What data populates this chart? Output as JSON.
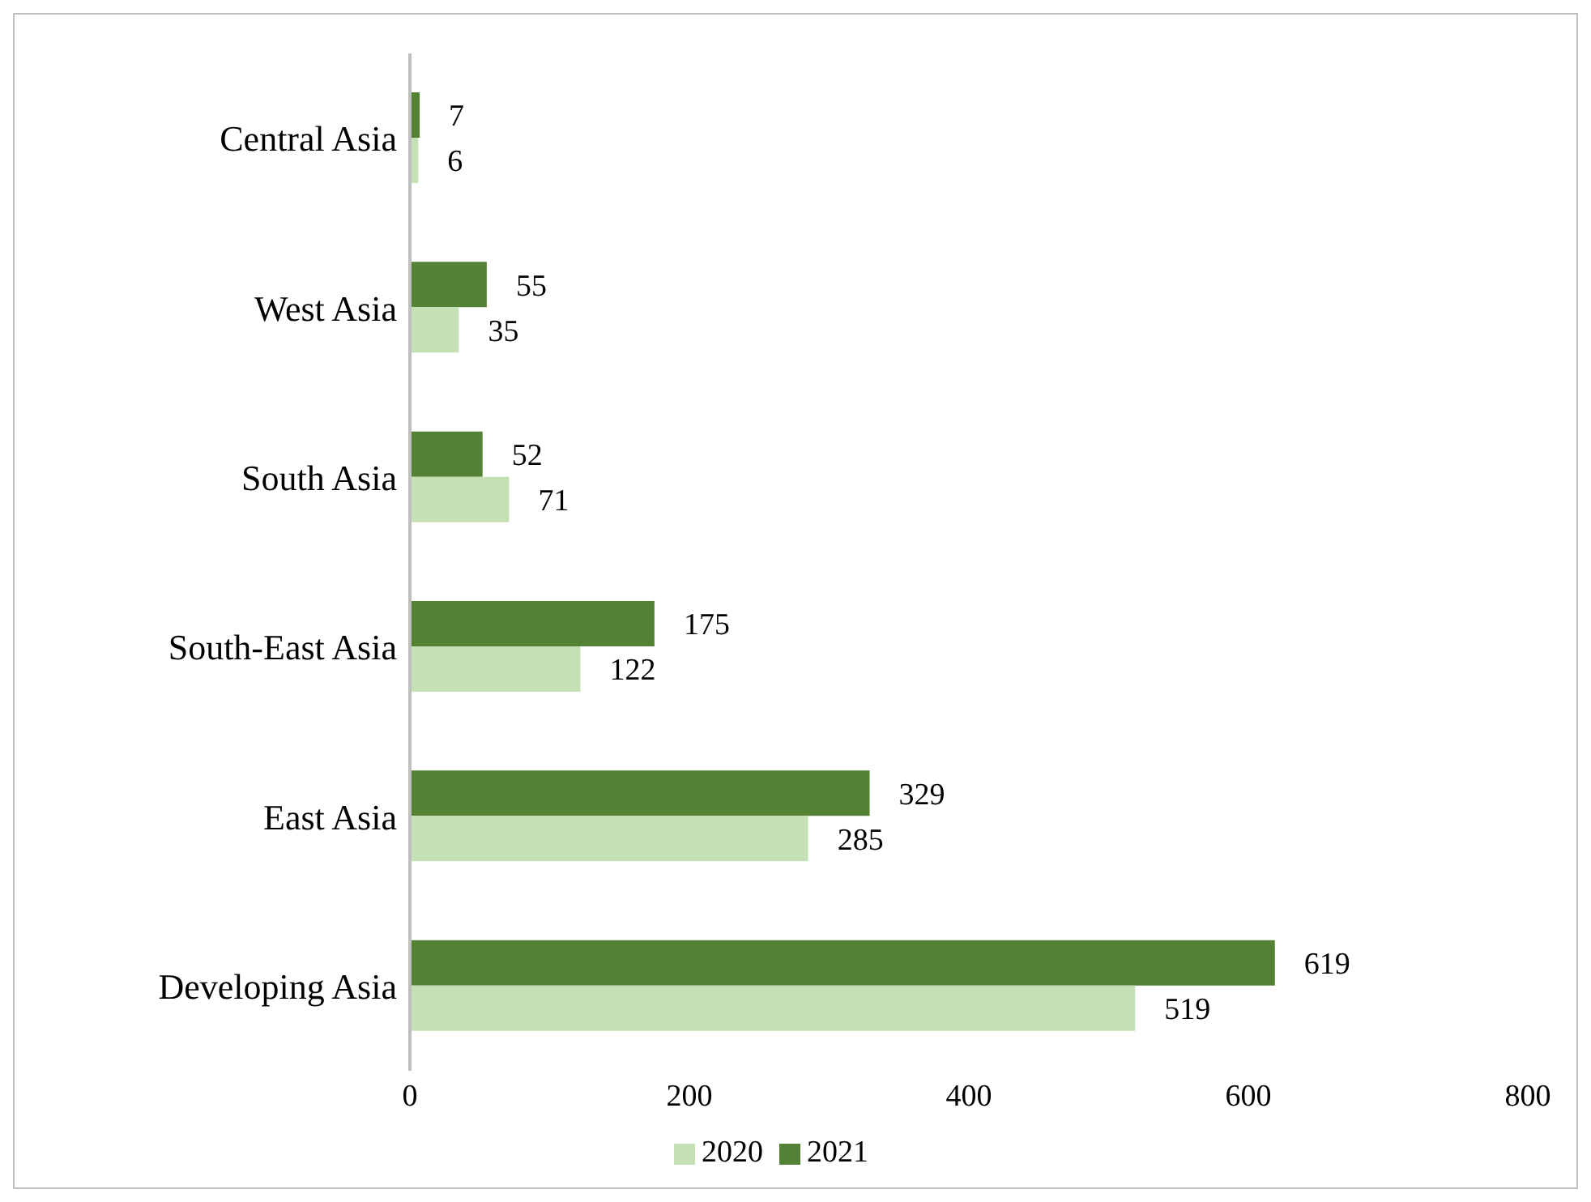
{
  "chart_data": {
    "type": "bar",
    "orientation": "horizontal",
    "categories": [
      "Central Asia",
      "West Asia",
      "South Asia",
      "South-East Asia",
      "East Asia",
      "Developing Asia"
    ],
    "series": [
      {
        "name": "2021",
        "color": "#548235",
        "values": [
          7,
          55,
          52,
          175,
          329,
          619
        ]
      },
      {
        "name": "2020",
        "color": "#c5e0b4",
        "values": [
          6,
          35,
          71,
          122,
          285,
          519
        ]
      }
    ],
    "xlim": [
      0,
      800
    ],
    "xticks": [
      0,
      200,
      400,
      600,
      800
    ],
    "grid": false,
    "legend": "bottom",
    "data_labels": true
  }
}
